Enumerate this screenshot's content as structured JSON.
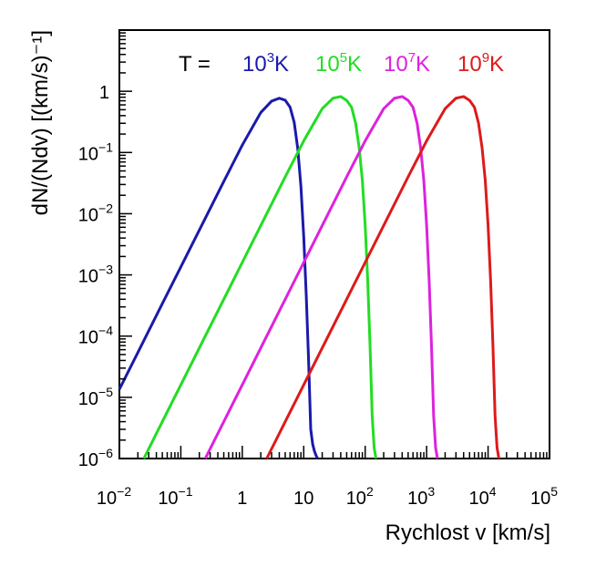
{
  "chart_data": {
    "type": "line",
    "xscale": "log",
    "yscale": "log",
    "xlim": [
      0.01,
      100000
    ],
    "ylim": [
      1e-06,
      10
    ],
    "xlabel": "Rychlost v [km/s]",
    "ylabel": "dN/(Ndv) [(km/s)⁻¹]",
    "xticks": [
      {
        "value": 0.01,
        "base": "10",
        "exp": "−2"
      },
      {
        "value": 0.1,
        "base": "10",
        "exp": "−1"
      },
      {
        "value": 1,
        "base": "1",
        "exp": ""
      },
      {
        "value": 10,
        "base": "10",
        "exp": ""
      },
      {
        "value": 100,
        "base": "10",
        "exp": "2"
      },
      {
        "value": 1000,
        "base": "10",
        "exp": "3"
      },
      {
        "value": 10000,
        "base": "10",
        "exp": "4"
      },
      {
        "value": 100000,
        "base": "10",
        "exp": "5"
      }
    ],
    "yticks": [
      {
        "value": 1e-06,
        "base": "10",
        "exp": "−6"
      },
      {
        "value": 1e-05,
        "base": "10",
        "exp": "−5"
      },
      {
        "value": 0.0001,
        "base": "10",
        "exp": "−4"
      },
      {
        "value": 0.001,
        "base": "10",
        "exp": "−3"
      },
      {
        "value": 0.01,
        "base": "10",
        "exp": "−2"
      },
      {
        "value": 0.1,
        "base": "10",
        "exp": "−1"
      },
      {
        "value": 1,
        "base": "1",
        "exp": ""
      }
    ],
    "legend": {
      "prefix": "T = ",
      "placement": "top"
    },
    "series": [
      {
        "label_base": "10",
        "label_exp": "3",
        "label_unit": "K",
        "color": "#1a1aaa",
        "x": [
          0.01,
          0.02,
          0.05,
          0.1,
          0.2,
          0.5,
          1,
          2,
          3,
          4,
          5,
          6,
          7,
          8,
          9,
          10,
          11,
          12,
          13,
          14,
          15,
          16,
          16.8
        ],
        "y": [
          1.35e-05,
          5.4e-05,
          0.00034,
          0.00135,
          0.0054,
          0.0336,
          0.132,
          0.45,
          0.69,
          0.77,
          0.715,
          0.55,
          0.31,
          0.115,
          0.028,
          0.0042,
          0.00045,
          4e-05,
          3e-06,
          1.7e-06,
          1.3e-06,
          1.1e-06,
          1e-06
        ]
      },
      {
        "label_base": "10",
        "label_exp": "5",
        "label_unit": "K",
        "color": "#22dd22",
        "x": [
          0.025,
          0.05,
          0.1,
          0.2,
          0.5,
          1,
          2,
          5,
          10,
          20,
          30,
          40,
          50,
          60,
          70,
          80,
          90,
          100,
          110,
          120,
          130,
          140,
          150
        ],
        "y": [
          1e-06,
          4e-06,
          1.6e-05,
          6.4e-05,
          0.0004,
          0.0016,
          0.0064,
          0.04,
          0.155,
          0.52,
          0.77,
          0.82,
          0.71,
          0.55,
          0.3,
          0.118,
          0.035,
          0.0065,
          0.0008,
          7e-05,
          5e-06,
          1.5e-06,
          1e-06
        ]
      },
      {
        "label_base": "10",
        "label_exp": "7",
        "label_unit": "K",
        "color": "#dd22dd",
        "x": [
          0.25,
          0.5,
          1,
          2,
          5,
          10,
          20,
          50,
          100,
          200,
          300,
          400,
          500,
          600,
          700,
          800,
          900,
          1000,
          1100,
          1200,
          1300,
          1400,
          1500
        ],
        "y": [
          1e-06,
          4e-06,
          1.6e-05,
          6.4e-05,
          0.0004,
          0.0016,
          0.0064,
          0.04,
          0.155,
          0.52,
          0.77,
          0.82,
          0.71,
          0.55,
          0.3,
          0.118,
          0.035,
          0.0065,
          0.0008,
          7e-05,
          5e-06,
          1.5e-06,
          1e-06
        ]
      },
      {
        "label_base": "10",
        "label_exp": "9",
        "label_unit": "K",
        "color": "#dd1a1a",
        "x": [
          2.5,
          5,
          10,
          20,
          50,
          100,
          200,
          500,
          1000,
          2000,
          3000,
          4000,
          5000,
          6000,
          7000,
          8000,
          9000,
          10000,
          11000,
          12000,
          13000,
          14000,
          15000
        ],
        "y": [
          1e-06,
          4e-06,
          1.6e-05,
          6.4e-05,
          0.0004,
          0.0016,
          0.0064,
          0.04,
          0.155,
          0.52,
          0.77,
          0.82,
          0.71,
          0.55,
          0.3,
          0.118,
          0.035,
          0.0065,
          0.0008,
          7e-05,
          5e-06,
          1.5e-06,
          1e-06
        ]
      }
    ]
  }
}
